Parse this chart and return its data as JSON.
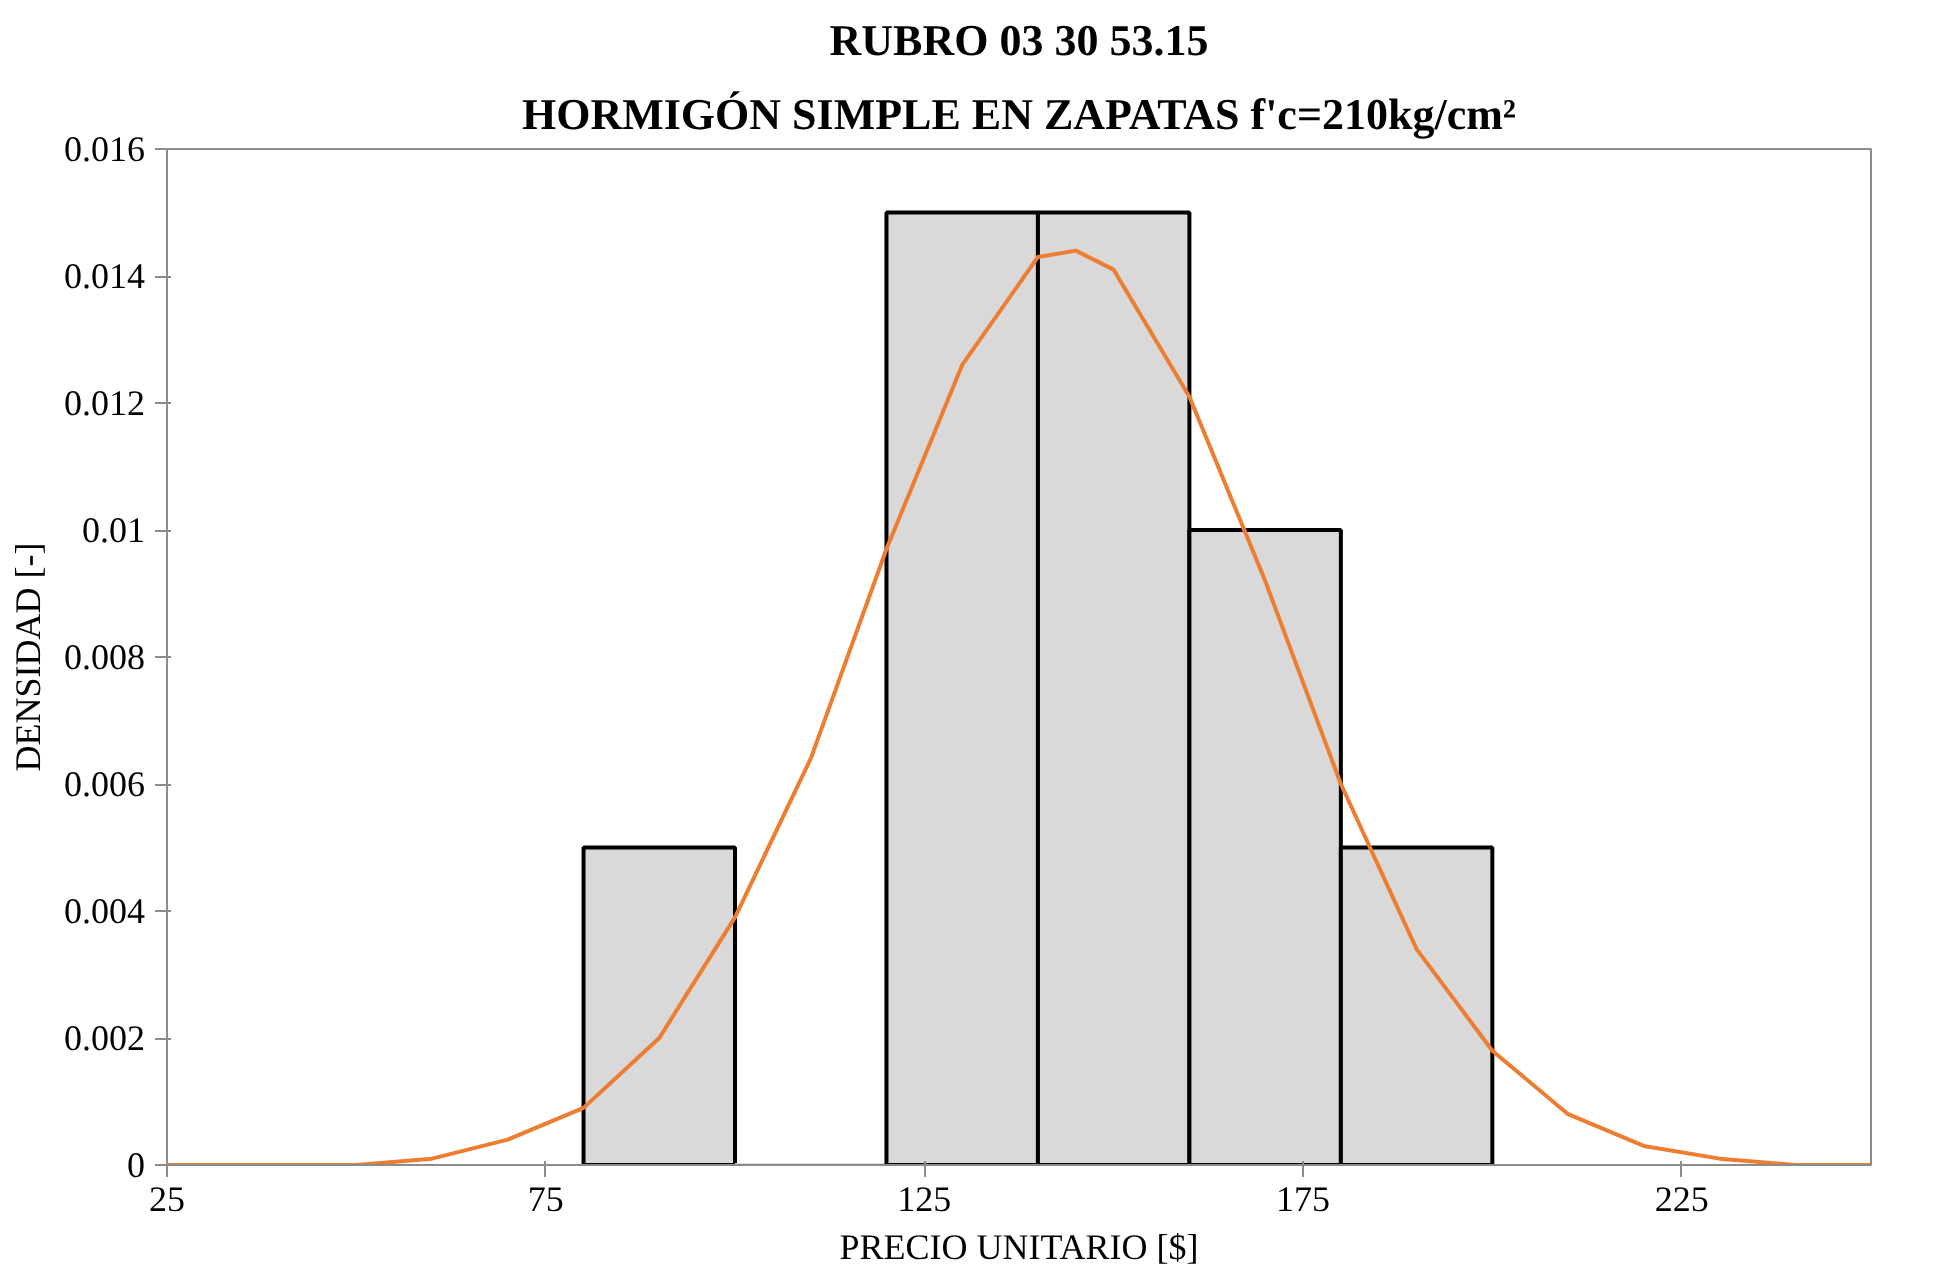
{
  "chart_data": {
    "type": "histogram",
    "title": "RUBRO 03 30 53.15",
    "subtitle": "HORMIGÓN SIMPLE EN ZAPATAS f'c=210kg/cm²",
    "xlabel": "PRECIO UNITARIO [$]",
    "ylabel": "DENSIDAD [-]",
    "bins": [
      80,
      100,
      120,
      140,
      160,
      180,
      200
    ],
    "values": [
      0.005,
      0,
      0.015,
      0.015,
      0.01,
      0.005
    ],
    "color": "#d9d9d9",
    "series": [
      {
        "type": "line",
        "color": "#ed7d31",
        "x": [
          25,
          40,
          50,
          60,
          70,
          80,
          90,
          100,
          110,
          120,
          130,
          140,
          145,
          150,
          160,
          170,
          180,
          190,
          200,
          210,
          220,
          230,
          240,
          250
        ],
        "values": [
          0,
          0,
          0,
          0.0001,
          0.0004,
          0.0009,
          0.002,
          0.0039,
          0.0064,
          0.0097,
          0.0126,
          0.0143,
          0.0144,
          0.0141,
          0.0121,
          0.0092,
          0.006,
          0.0034,
          0.0018,
          0.0008,
          0.0003,
          0.0001,
          0,
          0
        ]
      }
    ],
    "xlim": [
      25,
      250
    ],
    "xticks": [
      25,
      75,
      125,
      175,
      225
    ],
    "ylim": [
      0,
      0.016
    ],
    "yticks": [
      0,
      0.002,
      0.004,
      0.006,
      0.008,
      0.01,
      0.012,
      0.014,
      0.016
    ],
    "grid": false
  }
}
